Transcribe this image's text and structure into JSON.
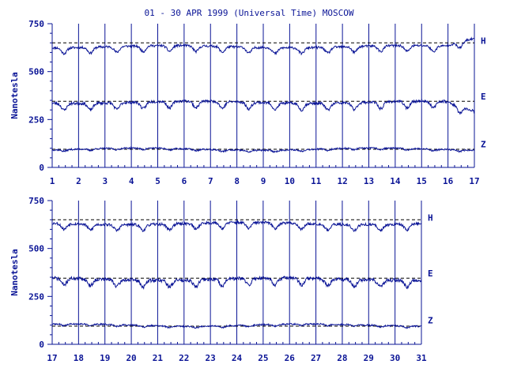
{
  "title": "01 - 30 APR 1999 (Universal Time) MOSCOW",
  "colors": {
    "ink": "#0a1496",
    "background": "#ffffff"
  },
  "chart_data": [
    {
      "type": "line",
      "panel": "top",
      "ylabel": "Nanotesla",
      "ylim": [
        0,
        750
      ],
      "y_ticks": [
        "0",
        "250",
        "500",
        "750"
      ],
      "y_tick_values": [
        0,
        250,
        500,
        750
      ],
      "x_ticks": [
        "1",
        "2",
        "3",
        "4",
        "5",
        "6",
        "7",
        "8",
        "9",
        "10",
        "11",
        "12",
        "13",
        "14",
        "15",
        "16",
        "17"
      ],
      "xlim": [
        1,
        17
      ],
      "grid": "vertical lines at each day",
      "baselines": [
        650,
        345,
        95
      ],
      "series": [
        {
          "name": "H",
          "base": 630,
          "dip": 30,
          "noise": 6,
          "seed": 11,
          "end_spike": 45
        },
        {
          "name": "E",
          "base": 340,
          "dip": 35,
          "noise": 7,
          "seed": 23,
          "end_spike": -50
        },
        {
          "name": "Z",
          "base": 95,
          "dip": 8,
          "noise": 4,
          "seed": 37,
          "end_spike": 0
        }
      ]
    },
    {
      "type": "line",
      "panel": "bottom",
      "ylabel": "Nanotesla",
      "ylim": [
        0,
        750
      ],
      "y_ticks": [
        "0",
        "250",
        "500",
        "750"
      ],
      "y_tick_values": [
        0,
        250,
        500,
        750
      ],
      "x_ticks": [
        "17",
        "18",
        "19",
        "20",
        "21",
        "22",
        "23",
        "24",
        "25",
        "26",
        "27",
        "28",
        "29",
        "30",
        "31"
      ],
      "xlim": [
        17,
        31
      ],
      "grid": "vertical lines at each day",
      "baselines": [
        650,
        345,
        95
      ],
      "series": [
        {
          "name": "H",
          "base": 630,
          "dip": 30,
          "noise": 7,
          "seed": 53,
          "end_spike": 0
        },
        {
          "name": "E",
          "base": 340,
          "dip": 35,
          "noise": 9,
          "seed": 71,
          "end_spike": 0
        },
        {
          "name": "Z",
          "base": 100,
          "dip": 8,
          "noise": 4,
          "seed": 89,
          "end_spike": 0
        }
      ]
    }
  ]
}
